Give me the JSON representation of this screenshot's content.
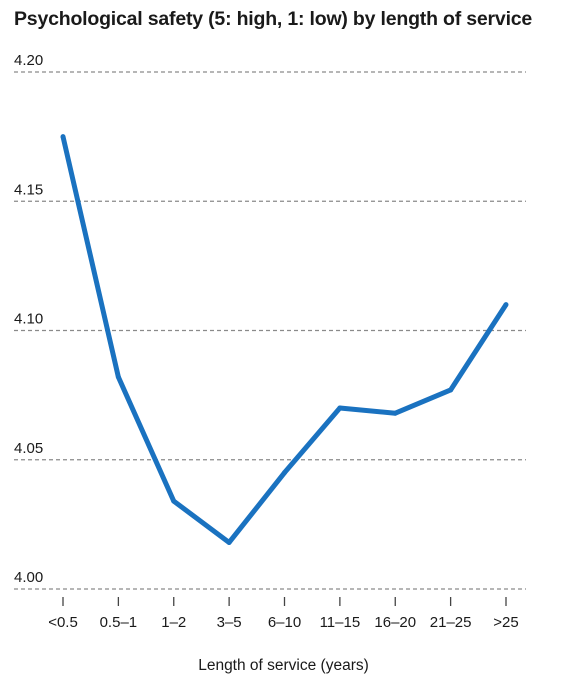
{
  "chart_data": {
    "type": "line",
    "title": "Psychological safety (5: high, 1: low) by length of service",
    "xlabel": "Length of service (years)",
    "ylabel": "",
    "categories": [
      "<0.5",
      "0.5–1",
      "1–2",
      "3–5",
      "6–10",
      "11–15",
      "16–20",
      "21–25",
      ">25"
    ],
    "series": [
      {
        "values": [
          4.175,
          4.082,
          4.034,
          4.018,
          4.045,
          4.07,
          4.068,
          4.077,
          4.11
        ],
        "color": "#1a72c0"
      }
    ],
    "ylim": [
      4.0,
      4.2
    ],
    "yticks": [
      "4.20",
      "4.15",
      "4.10",
      "4.05",
      "4.00"
    ],
    "grid": true,
    "legend": "none"
  }
}
